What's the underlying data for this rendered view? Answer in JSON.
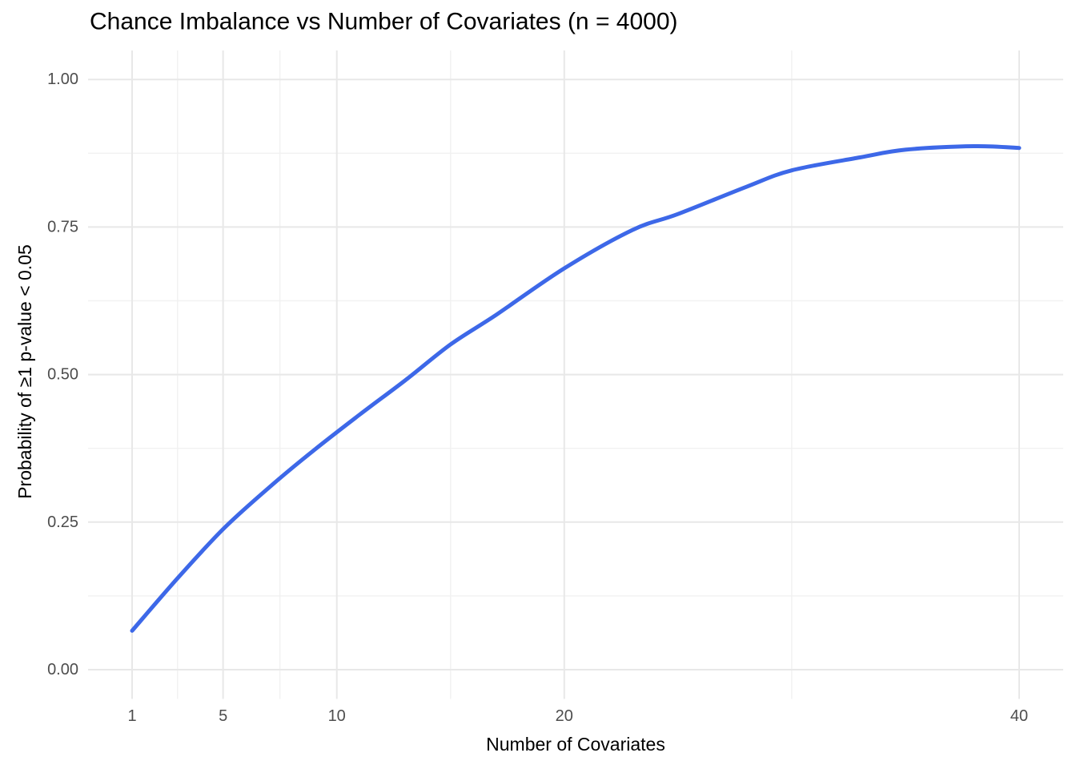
{
  "chart_data": {
    "type": "line",
    "title": "Chance Imbalance vs Number of Covariates (n = 4000)",
    "xlabel": "Number of Covariates",
    "ylabel": "Probability of ≥1 p-value < 0.05",
    "legend": "none",
    "grid": "on",
    "background": "#FFFFFF",
    "x_axis": {
      "lim": [
        1,
        40
      ],
      "ticks": [
        1,
        5,
        10,
        20,
        40
      ],
      "tick_labels": [
        "1",
        "5",
        "10",
        "20",
        "40"
      ],
      "minor_breaks": [
        3,
        7.5,
        15,
        30
      ]
    },
    "y_axis": {
      "lim": [
        0,
        1
      ],
      "ticks": [
        0,
        0.25,
        0.5,
        0.75,
        1
      ],
      "tick_labels": [
        "0.00",
        "0.25",
        "0.50",
        "0.75",
        "1.00"
      ],
      "minor_breaks": [
        0.125,
        0.375,
        0.625,
        0.875
      ]
    },
    "series": [
      {
        "color": "#3D68E8",
        "points": [
          [
            1,
            0.066
          ],
          [
            3,
            0.155
          ],
          [
            5,
            0.238
          ],
          [
            7,
            0.308
          ],
          [
            9,
            0.372
          ],
          [
            11,
            0.432
          ],
          [
            13,
            0.49
          ],
          [
            15,
            0.551
          ],
          [
            17,
            0.601
          ],
          [
            20,
            0.68
          ],
          [
            23,
            0.745
          ],
          [
            25,
            0.772
          ],
          [
            28,
            0.818
          ],
          [
            30,
            0.846
          ],
          [
            33,
            0.868
          ],
          [
            35,
            0.881
          ],
          [
            38,
            0.887
          ],
          [
            40,
            0.884
          ]
        ]
      }
    ],
    "colors": {
      "tick_label": "#4D4D4D",
      "text": "#000000",
      "grid_major": "#E8E8E8",
      "grid_minor": "#F1F1F1",
      "line": "#3D68E8"
    }
  }
}
